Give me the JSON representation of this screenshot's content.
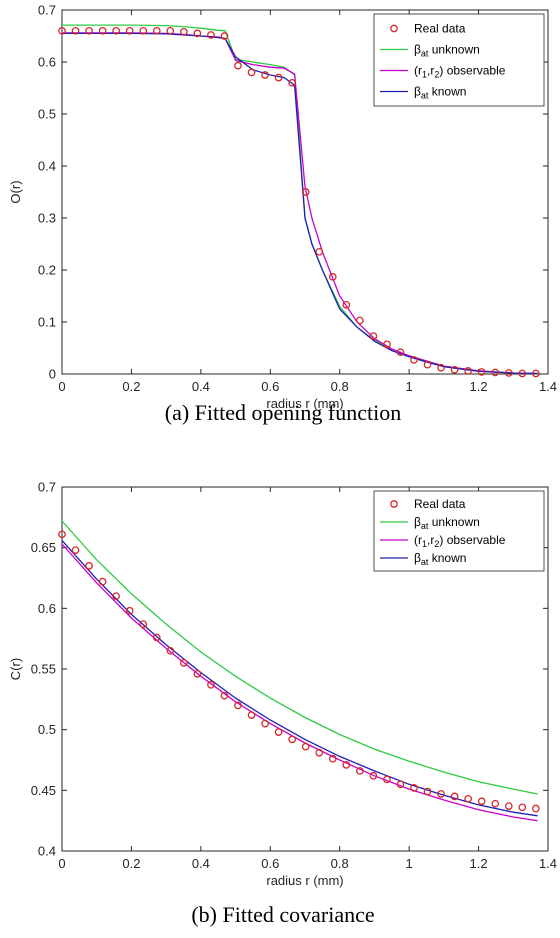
{
  "figure": {
    "captions": [
      "(a) Fitted opening function",
      "(b) Fitted covariance"
    ]
  },
  "legend": {
    "entries": [
      {
        "main": "Real data",
        "sub": "",
        "after": "",
        "color": "#d62728",
        "marker": "circle"
      },
      {
        "main": "β",
        "sub": "at",
        "after": " unknown",
        "color": "#2ecc40",
        "marker": "line"
      },
      {
        "main": "(r",
        "sub": "1",
        "after": ",r",
        "sub2": "2",
        "after2": ") observable",
        "color": "#cc00cc",
        "marker": "line"
      },
      {
        "main": "β",
        "sub": "at",
        "after": " known",
        "color": "#1f1fb4",
        "marker": "line"
      }
    ]
  },
  "chart_data": [
    {
      "type": "line",
      "title": "",
      "xlabel": "radius r (mm)",
      "ylabel": "O(r)",
      "xlim": [
        0,
        1.4
      ],
      "ylim": [
        0,
        0.7
      ],
      "xticks": [
        "0",
        "0.2",
        "0.4",
        "0.6",
        "0.8",
        "1",
        "1.2",
        "1.4"
      ],
      "yticks": [
        "0",
        "0.1",
        "0.2",
        "0.3",
        "0.4",
        "0.5",
        "0.6",
        "0.7"
      ],
      "legend": "top-right",
      "grid": false,
      "series": [
        {
          "name": "Real data",
          "style": "markers",
          "color": "#d62728",
          "x": [
            0,
            0.039,
            0.078,
            0.117,
            0.156,
            0.195,
            0.234,
            0.273,
            0.312,
            0.351,
            0.39,
            0.429,
            0.468,
            0.507,
            0.546,
            0.585,
            0.624,
            0.663,
            0.702,
            0.741,
            0.78,
            0.819,
            0.858,
            0.897,
            0.936,
            0.975,
            1.014,
            1.053,
            1.092,
            1.131,
            1.17,
            1.209,
            1.248,
            1.287,
            1.326,
            1.365
          ],
          "y": [
            0.66,
            0.66,
            0.66,
            0.66,
            0.66,
            0.66,
            0.66,
            0.66,
            0.66,
            0.658,
            0.655,
            0.652,
            0.65,
            0.593,
            0.58,
            0.575,
            0.57,
            0.56,
            0.35,
            0.235,
            0.187,
            0.133,
            0.103,
            0.073,
            0.057,
            0.042,
            0.027,
            0.018,
            0.012,
            0.008,
            0.006,
            0.004,
            0.003,
            0.002,
            0.001,
            0.001
          ]
        },
        {
          "name": "β at unknown",
          "style": "line",
          "color": "#2ecc40",
          "x": [
            0,
            0.1,
            0.2,
            0.3,
            0.35,
            0.4,
            0.45,
            0.47,
            0.5,
            0.55,
            0.6,
            0.64,
            0.67,
            0.7,
            0.72,
            0.75,
            0.8,
            0.85,
            0.9,
            0.95,
            1.0,
            1.05,
            1.1,
            1.2,
            1.3,
            1.37
          ],
          "y": [
            0.671,
            0.671,
            0.671,
            0.67,
            0.668,
            0.665,
            0.661,
            0.66,
            0.605,
            0.6,
            0.595,
            0.59,
            0.575,
            0.3,
            0.25,
            0.2,
            0.13,
            0.09,
            0.065,
            0.048,
            0.035,
            0.025,
            0.015,
            0.006,
            0.002,
            0.001
          ]
        },
        {
          "name": "(r1,r2) observable",
          "style": "line",
          "color": "#cc00cc",
          "x": [
            0,
            0.1,
            0.2,
            0.3,
            0.35,
            0.4,
            0.45,
            0.47,
            0.5,
            0.55,
            0.6,
            0.64,
            0.67,
            0.7,
            0.72,
            0.75,
            0.8,
            0.85,
            0.9,
            0.95,
            1.0,
            1.05,
            1.1,
            1.2,
            1.3,
            1.37
          ],
          "y": [
            0.656,
            0.656,
            0.656,
            0.655,
            0.653,
            0.65,
            0.648,
            0.645,
            0.603,
            0.595,
            0.59,
            0.588,
            0.577,
            0.36,
            0.3,
            0.235,
            0.15,
            0.1,
            0.068,
            0.048,
            0.035,
            0.025,
            0.015,
            0.006,
            0.002,
            0.001
          ]
        },
        {
          "name": "β at known",
          "style": "line",
          "color": "#1f1fb4",
          "x": [
            0,
            0.1,
            0.2,
            0.3,
            0.35,
            0.4,
            0.45,
            0.47,
            0.5,
            0.55,
            0.6,
            0.64,
            0.67,
            0.7,
            0.72,
            0.75,
            0.8,
            0.85,
            0.9,
            0.95,
            1.0,
            1.05,
            1.1,
            1.2,
            1.3,
            1.37
          ],
          "y": [
            0.655,
            0.655,
            0.655,
            0.654,
            0.652,
            0.65,
            0.647,
            0.645,
            0.61,
            0.585,
            0.575,
            0.57,
            0.555,
            0.3,
            0.25,
            0.2,
            0.125,
            0.09,
            0.063,
            0.045,
            0.033,
            0.023,
            0.014,
            0.005,
            0.002,
            0.001
          ]
        }
      ]
    },
    {
      "type": "line",
      "title": "",
      "xlabel": "radius r (mm)",
      "ylabel": "C(r)",
      "xlim": [
        0,
        1.4
      ],
      "ylim": [
        0.4,
        0.7
      ],
      "xticks": [
        "0",
        "0.2",
        "0.4",
        "0.6",
        "0.8",
        "1",
        "1.2",
        "1.4"
      ],
      "yticks": [
        "0.4",
        "0.45",
        "0.5",
        "0.55",
        "0.6",
        "0.65",
        "0.7"
      ],
      "legend": "top-right",
      "grid": false,
      "series": [
        {
          "name": "Real data",
          "style": "markers",
          "color": "#d62728",
          "x": [
            0,
            0.039,
            0.078,
            0.117,
            0.156,
            0.195,
            0.234,
            0.273,
            0.312,
            0.351,
            0.39,
            0.429,
            0.468,
            0.507,
            0.546,
            0.585,
            0.624,
            0.663,
            0.702,
            0.741,
            0.78,
            0.819,
            0.858,
            0.897,
            0.936,
            0.975,
            1.014,
            1.053,
            1.092,
            1.131,
            1.17,
            1.209,
            1.248,
            1.287,
            1.326,
            1.365
          ],
          "y": [
            0.661,
            0.648,
            0.635,
            0.622,
            0.61,
            0.598,
            0.587,
            0.576,
            0.565,
            0.555,
            0.546,
            0.537,
            0.528,
            0.52,
            0.512,
            0.505,
            0.498,
            0.492,
            0.486,
            0.481,
            0.476,
            0.471,
            0.466,
            0.462,
            0.459,
            0.455,
            0.452,
            0.449,
            0.447,
            0.445,
            0.443,
            0.441,
            0.439,
            0.437,
            0.436,
            0.435
          ]
        },
        {
          "name": "β at unknown",
          "style": "line",
          "color": "#2ecc40",
          "x": [
            0,
            0.1,
            0.2,
            0.3,
            0.4,
            0.5,
            0.6,
            0.7,
            0.8,
            0.9,
            1.0,
            1.1,
            1.2,
            1.3,
            1.37
          ],
          "y": [
            0.672,
            0.64,
            0.612,
            0.587,
            0.564,
            0.544,
            0.526,
            0.51,
            0.496,
            0.484,
            0.474,
            0.465,
            0.457,
            0.451,
            0.447
          ]
        },
        {
          "name": "(r1,r2) observable",
          "style": "line",
          "color": "#cc00cc",
          "x": [
            0,
            0.1,
            0.2,
            0.3,
            0.4,
            0.5,
            0.6,
            0.7,
            0.8,
            0.9,
            1.0,
            1.1,
            1.2,
            1.3,
            1.37
          ],
          "y": [
            0.653,
            0.621,
            0.592,
            0.567,
            0.544,
            0.523,
            0.505,
            0.489,
            0.475,
            0.462,
            0.451,
            0.442,
            0.434,
            0.428,
            0.425
          ]
        },
        {
          "name": "β at known",
          "style": "line",
          "color": "#1f1fb4",
          "x": [
            0,
            0.1,
            0.2,
            0.3,
            0.4,
            0.5,
            0.6,
            0.7,
            0.8,
            0.9,
            1.0,
            1.1,
            1.2,
            1.3,
            1.37
          ],
          "y": [
            0.656,
            0.624,
            0.595,
            0.57,
            0.547,
            0.526,
            0.508,
            0.492,
            0.478,
            0.466,
            0.455,
            0.446,
            0.438,
            0.432,
            0.429
          ]
        }
      ]
    }
  ]
}
